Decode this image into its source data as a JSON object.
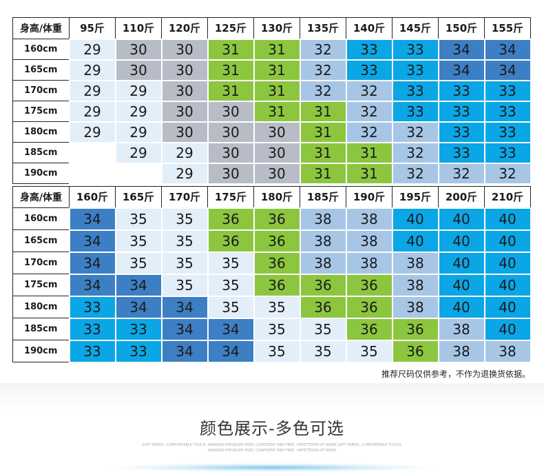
{
  "tables": [
    {
      "corner": "身高/体重",
      "weights": [
        "95斤",
        "110斤",
        "120斤",
        "125斤",
        "130斤",
        "135斤",
        "140斤",
        "145斤",
        "150斤",
        "155斤"
      ],
      "rows": [
        {
          "height": "160cm",
          "cells": [
            "29",
            "30",
            "30",
            "31",
            "31",
            "32",
            "33",
            "33",
            "34",
            "34"
          ]
        },
        {
          "height": "165cm",
          "cells": [
            "29",
            "30",
            "30",
            "31",
            "31",
            "32",
            "33",
            "33",
            "34",
            "34"
          ]
        },
        {
          "height": "170cm",
          "cells": [
            "29",
            "29",
            "30",
            "31",
            "31",
            "32",
            "32",
            "33",
            "33",
            "33"
          ]
        },
        {
          "height": "175cm",
          "cells": [
            "29",
            "29",
            "30",
            "30",
            "31",
            "31",
            "32",
            "33",
            "33",
            "33"
          ]
        },
        {
          "height": "180cm",
          "cells": [
            "29",
            "29",
            "30",
            "30",
            "30",
            "31",
            "32",
            "32",
            "33",
            "33"
          ]
        },
        {
          "height": "185cm",
          "cells": [
            "",
            "29",
            "29",
            "30",
            "30",
            "31",
            "31",
            "32",
            "33",
            "33"
          ]
        },
        {
          "height": "190cm",
          "cells": [
            "",
            "",
            "29",
            "30",
            "30",
            "31",
            "31",
            "32",
            "32",
            "32"
          ]
        }
      ]
    },
    {
      "corner": "身高/体重",
      "weights": [
        "160斤",
        "165斤",
        "170斤",
        "175斤",
        "180斤",
        "185斤",
        "190斤",
        "195斤",
        "200斤",
        "210斤"
      ],
      "rows": [
        {
          "height": "160cm",
          "cells": [
            "34",
            "35",
            "35",
            "36",
            "36",
            "38",
            "38",
            "40",
            "40",
            "40"
          ]
        },
        {
          "height": "165cm",
          "cells": [
            "34",
            "35",
            "35",
            "36",
            "36",
            "38",
            "38",
            "40",
            "40",
            "40"
          ]
        },
        {
          "height": "170cm",
          "cells": [
            "34",
            "35",
            "35",
            "35",
            "36",
            "38",
            "38",
            "38",
            "40",
            "40"
          ]
        },
        {
          "height": "175cm",
          "cells": [
            "34",
            "34",
            "35",
            "35",
            "36",
            "36",
            "36",
            "38",
            "40",
            "40"
          ]
        },
        {
          "height": "180cm",
          "cells": [
            "33",
            "34",
            "34",
            "35",
            "35",
            "36",
            "36",
            "38",
            "40",
            "40"
          ]
        },
        {
          "height": "185cm",
          "cells": [
            "33",
            "33",
            "34",
            "34",
            "35",
            "35",
            "36",
            "36",
            "38",
            "40"
          ]
        },
        {
          "height": "190cm",
          "cells": [
            "33",
            "33",
            "34",
            "34",
            "35",
            "35",
            "35",
            "36",
            "38",
            "38"
          ]
        }
      ]
    }
  ],
  "size_colors": {
    "29": "#e2eef8",
    "30": "#b7bcc7",
    "31": "#8cc63f",
    "32": "#a7c6e6",
    "33": "#0aa6e6",
    "34": "#3d7fc4",
    "35": "#e2eef8",
    "36": "#8cc63f",
    "38": "#a7c6e6",
    "40": "#0aa6e6"
  },
  "note": "推荐尺码仅供参考，不作为退换货依据。",
  "section_title": "颜色展示-多色可选",
  "sub_text_1": "SOFT FABRIC, COMFORTABLE TOUCH, WEARING PRESSURE-FREE, CONFIDENT AND FREE, UNFETTERED AT WORK SOFT FABRIC, COMFORTABLE TOUCH,",
  "sub_text_2": "WEARING PRESSURE-FREE, CONFIDENT AND FREE, UNFETTERED AT WORK"
}
